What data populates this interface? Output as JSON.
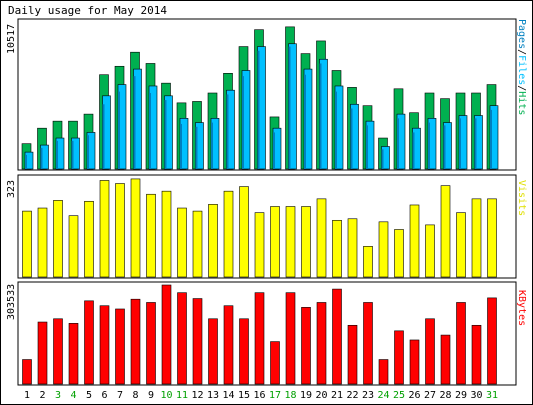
{
  "title": "Daily usage for May 2014",
  "colors": {
    "background": "#ffffff",
    "border": "#000000",
    "grid": "#c0c0c0",
    "hits": "#00b050",
    "files": "#00c0ff",
    "pages": "#0080c0",
    "visits": "#ffff00",
    "kbytes": "#ff0000",
    "weekday_label": "#000000",
    "weekend_label": "#00a000"
  },
  "chart_data": [
    {
      "type": "bar",
      "panel": "hits-files-pages",
      "ymax_label": "10517",
      "ylim": [
        0,
        10517
      ],
      "legend": {
        "pages": "Pages",
        "sep1": "/",
        "files": "Files",
        "sep2": "/",
        "hits": "Hits"
      },
      "categories": [
        "1",
        "2",
        "3",
        "4",
        "5",
        "6",
        "7",
        "8",
        "9",
        "10",
        "11",
        "12",
        "13",
        "14",
        "15",
        "16",
        "17",
        "18",
        "19",
        "20",
        "21",
        "22",
        "23",
        "24",
        "25",
        "26",
        "27",
        "28",
        "29",
        "30",
        "31"
      ],
      "series": [
        {
          "name": "Hits",
          "values": [
            1800,
            2900,
            3400,
            3400,
            3900,
            6700,
            7300,
            8300,
            7500,
            6100,
            4700,
            4800,
            5400,
            6800,
            8700,
            9900,
            3700,
            10100,
            8200,
            9100,
            7000,
            5800,
            4500,
            2200,
            5700,
            4000,
            5400,
            5000,
            5400,
            5400,
            6000
          ]
        },
        {
          "name": "Files",
          "values": [
            1200,
            1700,
            2200,
            2200,
            2600,
            5200,
            6000,
            7100,
            5900,
            5200,
            3600,
            3300,
            3600,
            5600,
            7000,
            8700,
            2900,
            8900,
            7100,
            7800,
            5900,
            4600,
            3400,
            1600,
            3900,
            2900,
            3600,
            3300,
            3800,
            3800,
            4500
          ]
        },
        {
          "name": "Pages",
          "values": [
            1000,
            1500,
            2000,
            2000,
            2400,
            4600,
            5500,
            6600,
            5400,
            4900,
            3200,
            3000,
            3300,
            5300,
            6600,
            8400,
            2600,
            8700,
            6700,
            7500,
            5500,
            4300,
            3100,
            1400,
            3600,
            2600,
            3300,
            3100,
            3600,
            3600,
            4200
          ]
        }
      ]
    },
    {
      "type": "bar",
      "panel": "visits",
      "ymax_label": "323",
      "ylim": [
        0,
        323
      ],
      "legend": {
        "visits": "Visits"
      },
      "categories": [
        "1",
        "2",
        "3",
        "4",
        "5",
        "6",
        "7",
        "8",
        "9",
        "10",
        "11",
        "12",
        "13",
        "14",
        "15",
        "16",
        "17",
        "18",
        "19",
        "20",
        "21",
        "22",
        "23",
        "24",
        "25",
        "26",
        "27",
        "28",
        "29",
        "30",
        "31"
      ],
      "series": [
        {
          "name": "Visits",
          "values": [
            215,
            225,
            250,
            200,
            247,
            315,
            305,
            320,
            270,
            280,
            225,
            215,
            237,
            280,
            295,
            210,
            230,
            230,
            230,
            255,
            185,
            190,
            100,
            180,
            155,
            235,
            170,
            298,
            210,
            255,
            255
          ]
        }
      ]
    },
    {
      "type": "bar",
      "panel": "kbytes",
      "ymax_label": "303533",
      "ylim": [
        0,
        303533
      ],
      "legend": {
        "kbytes": "KBytes"
      },
      "categories": [
        "1",
        "2",
        "3",
        "4",
        "5",
        "6",
        "7",
        "8",
        "9",
        "10",
        "11",
        "12",
        "13",
        "14",
        "15",
        "16",
        "17",
        "18",
        "19",
        "20",
        "21",
        "22",
        "23",
        "24",
        "25",
        "26",
        "27",
        "28",
        "29",
        "30",
        "31"
      ],
      "series": [
        {
          "name": "KBytes",
          "values": [
            75000,
            190000,
            200000,
            186000,
            255000,
            240000,
            230000,
            260000,
            250000,
            310000,
            280000,
            262000,
            200000,
            240000,
            200000,
            280000,
            130000,
            280000,
            235000,
            250000,
            291000,
            180000,
            250000,
            75000,
            163000,
            135000,
            200000,
            150000,
            250000,
            180000,
            264000
          ]
        }
      ]
    }
  ],
  "days": [
    {
      "label": "1",
      "weekend": false
    },
    {
      "label": "2",
      "weekend": false
    },
    {
      "label": "3",
      "weekend": true
    },
    {
      "label": "4",
      "weekend": true
    },
    {
      "label": "5",
      "weekend": false
    },
    {
      "label": "6",
      "weekend": false
    },
    {
      "label": "7",
      "weekend": false
    },
    {
      "label": "8",
      "weekend": false
    },
    {
      "label": "9",
      "weekend": false
    },
    {
      "label": "10",
      "weekend": true
    },
    {
      "label": "11",
      "weekend": true
    },
    {
      "label": "12",
      "weekend": false
    },
    {
      "label": "13",
      "weekend": false
    },
    {
      "label": "14",
      "weekend": false
    },
    {
      "label": "15",
      "weekend": false
    },
    {
      "label": "16",
      "weekend": false
    },
    {
      "label": "17",
      "weekend": true
    },
    {
      "label": "18",
      "weekend": true
    },
    {
      "label": "19",
      "weekend": false
    },
    {
      "label": "20",
      "weekend": false
    },
    {
      "label": "21",
      "weekend": false
    },
    {
      "label": "22",
      "weekend": false
    },
    {
      "label": "23",
      "weekend": false
    },
    {
      "label": "24",
      "weekend": true
    },
    {
      "label": "25",
      "weekend": true
    },
    {
      "label": "26",
      "weekend": false
    },
    {
      "label": "27",
      "weekend": false
    },
    {
      "label": "28",
      "weekend": false
    },
    {
      "label": "29",
      "weekend": false
    },
    {
      "label": "30",
      "weekend": false
    },
    {
      "label": "31",
      "weekend": true
    }
  ]
}
